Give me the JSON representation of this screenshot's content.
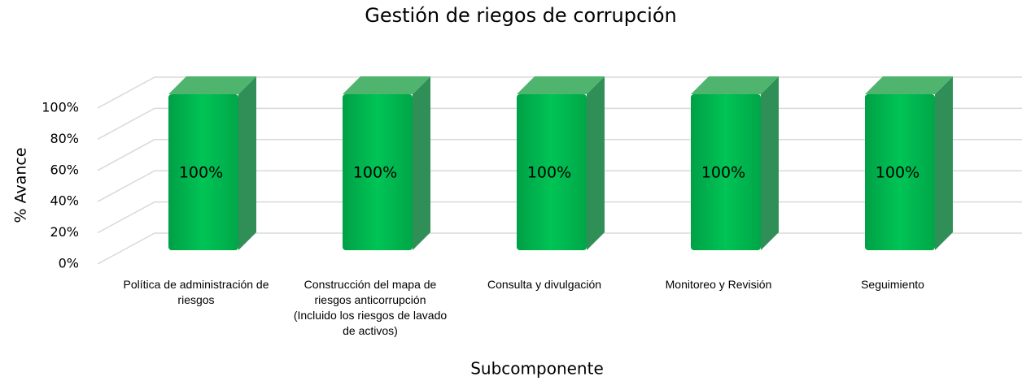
{
  "chart_data": {
    "type": "bar3d",
    "title": "Gestión de riegos de corrupción",
    "x_label": "Subcomponente",
    "y_label": "% Avance",
    "categories": [
      "Política de administración de riesgos",
      "Construcción del mapa de riesgos anticorrupción (Incluido los riesgos de lavado de activos)",
      "Consulta y divulgación",
      "Monitoreo y Revisión",
      "Seguimiento"
    ],
    "values": [
      100,
      100,
      100,
      100,
      100
    ],
    "value_labels": [
      "100%",
      "100%",
      "100%",
      "100%",
      "100%"
    ],
    "color": "#00b050",
    "ylim": [
      0,
      100
    ],
    "yticks": [
      {
        "value": 0,
        "label": "0%"
      },
      {
        "value": 20,
        "label": "20%"
      },
      {
        "value": 40,
        "label": "40%"
      },
      {
        "value": 60,
        "label": "60%"
      },
      {
        "value": 80,
        "label": "80%"
      },
      {
        "value": 100,
        "label": "100%"
      }
    ],
    "grid": true
  }
}
